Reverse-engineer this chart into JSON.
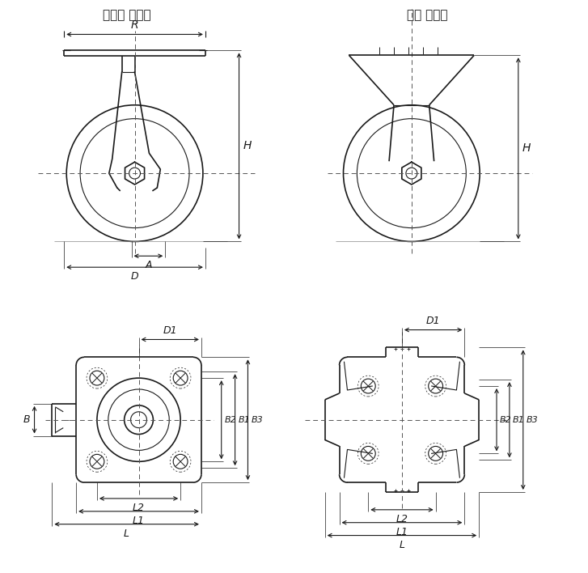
{
  "title_swivel": "스위벨 캐스터",
  "title_fixed": "고정 캐스터",
  "bg_color": "#ffffff",
  "line_color": "#1a1a1a",
  "dim_color": "#1a1a1a",
  "centerline_color": "#555555",
  "labels": {
    "R": "R",
    "H": "H",
    "A": "A",
    "D": "D",
    "D1": "D1",
    "B": "B",
    "B1": "B1",
    "B2": "B2",
    "B3": "B3",
    "L": "L",
    "L1": "L1",
    "L2": "L2"
  }
}
